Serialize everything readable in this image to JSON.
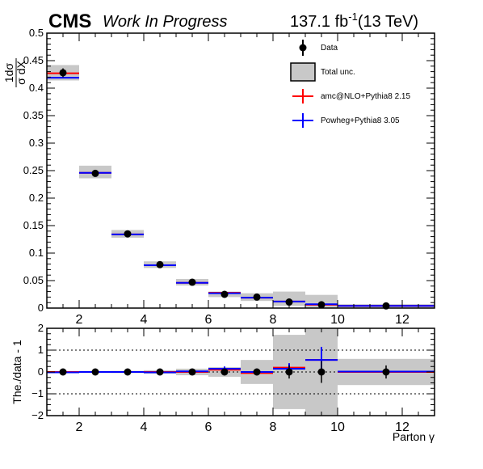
{
  "header": {
    "experiment": "CMS",
    "status": "Work In Progress",
    "lumi_value": "137.1 fb",
    "lumi_exp": "-1",
    "energy": "(13 TeV)"
  },
  "chart_data": [
    {
      "type": "line",
      "panel": "main",
      "ylabel_num": "1dσ",
      "ylabel_den": "σ dX",
      "xlim": [
        1,
        13
      ],
      "ylim": [
        0,
        0.5
      ],
      "yticks": [
        0,
        0.05,
        0.1,
        0.15,
        0.2,
        0.25,
        0.3,
        0.35,
        0.4,
        0.45,
        0.5
      ],
      "ytick_labels": [
        "0",
        "0.05",
        "0.1",
        "0.15",
        "0.2",
        "0.25",
        "0.3",
        "0.35",
        "0.4",
        "0.45",
        "0.5"
      ],
      "xticks": [
        2,
        4,
        6,
        8,
        10,
        12
      ],
      "xtick_labels": [
        "2",
        "4",
        "6",
        "8",
        "10",
        "12"
      ],
      "bins": [
        [
          1,
          2
        ],
        [
          2,
          3
        ],
        [
          3,
          4
        ],
        [
          4,
          5
        ],
        [
          5,
          6
        ],
        [
          6,
          7
        ],
        [
          7,
          8
        ],
        [
          8,
          9
        ],
        [
          9,
          10
        ],
        [
          10,
          13
        ]
      ],
      "legend_position": "top-right",
      "series": [
        {
          "name": "Data",
          "color": "#000000",
          "kind": "points",
          "values": [
            0.428,
            0.245,
            0.135,
            0.079,
            0.047,
            0.025,
            0.02,
            0.011,
            0.006,
            0.004
          ],
          "errors": [
            0.008,
            0.005,
            0.003,
            0.002,
            0.002,
            0.002,
            0.002,
            0.002,
            0.002,
            0.001
          ]
        },
        {
          "name": "Total unc.",
          "color": "#c8c8c8",
          "kind": "band",
          "low": [
            0.414,
            0.236,
            0.128,
            0.073,
            0.041,
            0.02,
            0.013,
            0.004,
            0.0,
            0.001
          ],
          "high": [
            0.442,
            0.259,
            0.142,
            0.085,
            0.053,
            0.03,
            0.027,
            0.03,
            0.024,
            0.007
          ]
        },
        {
          "name": "amc@NLO+Pythia8 2.15",
          "color": "#ff0000",
          "kind": "steps",
          "values": [
            0.427,
            0.246,
            0.134,
            0.078,
            0.046,
            0.028,
            0.019,
            0.012,
            0.006,
            0.004
          ]
        },
        {
          "name": "Powheg+Pythia8 3.05",
          "color": "#0000ff",
          "kind": "steps",
          "values": [
            0.419,
            0.246,
            0.134,
            0.078,
            0.046,
            0.027,
            0.019,
            0.012,
            0.007,
            0.004
          ]
        }
      ]
    },
    {
      "type": "line",
      "panel": "ratio",
      "ylabel": "The./data - 1",
      "xlabel": "Parton γ",
      "xlim": [
        1,
        13
      ],
      "ylim": [
        -2,
        2
      ],
      "yticks": [
        -2,
        -1,
        0,
        1,
        2
      ],
      "ytick_labels": [
        "−2",
        "−1",
        "0",
        "1",
        "2"
      ],
      "xticks": [
        2,
        4,
        6,
        8,
        10,
        12
      ],
      "xtick_labels": [
        "2",
        "4",
        "6",
        "8",
        "10",
        "12"
      ],
      "grid_y": [
        -1,
        0,
        1
      ],
      "bins": [
        [
          1,
          2
        ],
        [
          2,
          3
        ],
        [
          3,
          4
        ],
        [
          4,
          5
        ],
        [
          5,
          6
        ],
        [
          6,
          7
        ],
        [
          7,
          8
        ],
        [
          8,
          9
        ],
        [
          9,
          10
        ],
        [
          10,
          13
        ]
      ],
      "series": [
        {
          "name": "Data",
          "color": "#000000",
          "kind": "points",
          "values": [
            0,
            0,
            0,
            0,
            0,
            0,
            0,
            0,
            0,
            0
          ],
          "errors": [
            0.02,
            0.02,
            0.03,
            0.04,
            0.05,
            0.1,
            0.15,
            0.3,
            0.5,
            0.3
          ]
        },
        {
          "name": "Total unc.",
          "color": "#c8c8c8",
          "kind": "band",
          "low": [
            -0.04,
            -0.04,
            -0.05,
            -0.08,
            -0.15,
            -0.22,
            -0.55,
            -1.7,
            -2.0,
            -0.6
          ],
          "high": [
            0.04,
            0.04,
            0.05,
            0.08,
            0.15,
            0.22,
            0.55,
            1.7,
            2.0,
            0.6
          ]
        },
        {
          "name": "amc@NLO+Pythia8 2.15",
          "color": "#ff0000",
          "kind": "steps",
          "values": [
            0.0,
            0.0,
            0.0,
            0.0,
            0.0,
            0.1,
            -0.05,
            0.2,
            0.55,
            0.0
          ],
          "errors": [
            0.01,
            0.01,
            0.01,
            0.01,
            0.02,
            0.05,
            0.08,
            0.15,
            0.25,
            0.1
          ]
        },
        {
          "name": "Powheg+Pythia8 3.05",
          "color": "#0000ff",
          "kind": "steps",
          "values": [
            -0.02,
            0.0,
            0.0,
            -0.02,
            0.03,
            0.15,
            0.0,
            0.15,
            0.55,
            0.02
          ],
          "errors": [
            0.01,
            0.01,
            0.01,
            0.01,
            0.03,
            0.1,
            0.15,
            0.25,
            0.6,
            0.1
          ]
        }
      ]
    }
  ]
}
